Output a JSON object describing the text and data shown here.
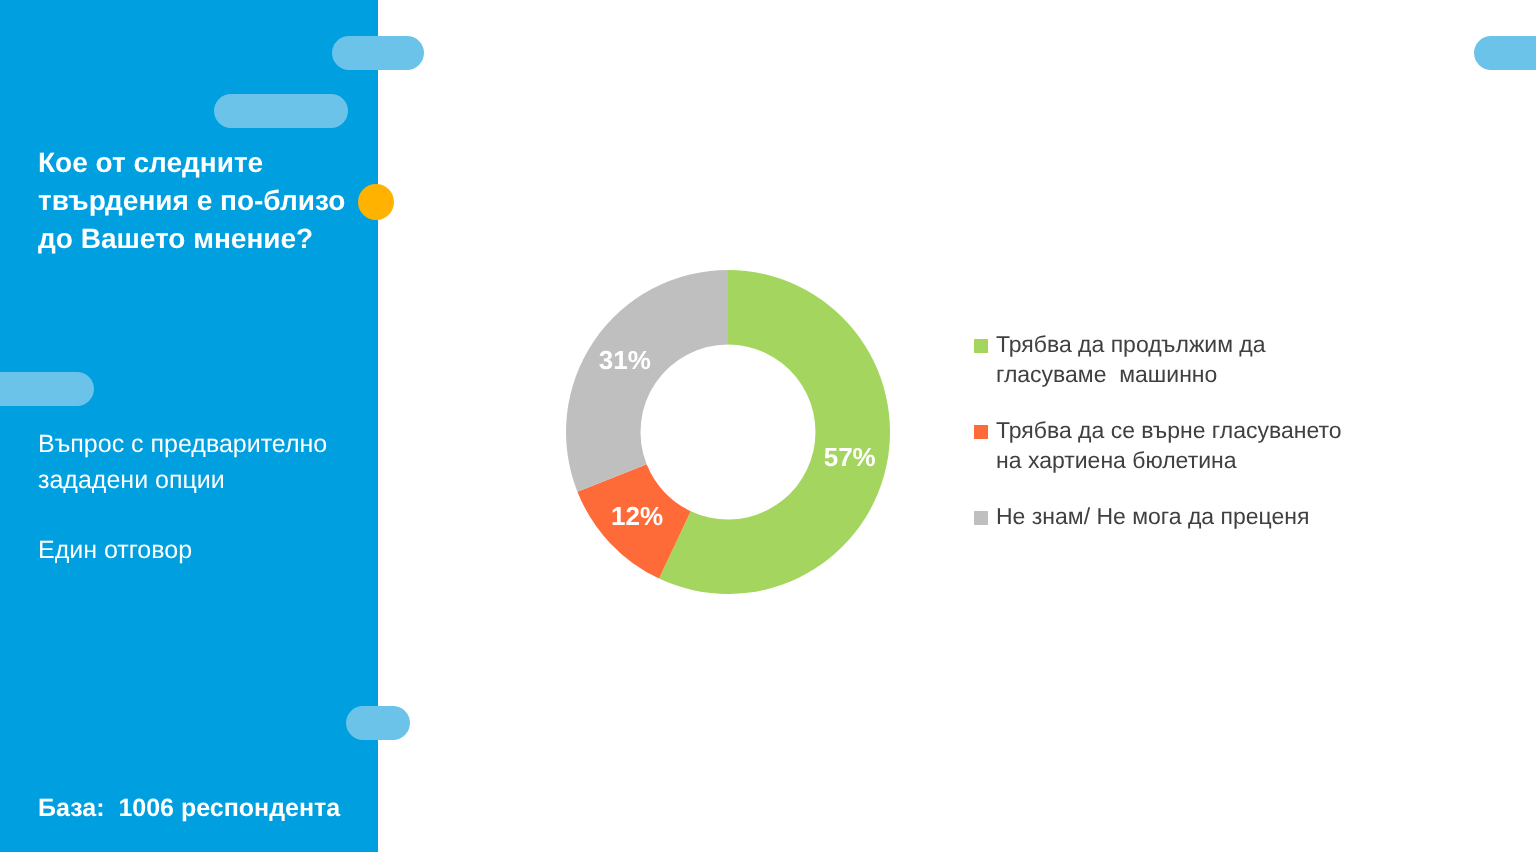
{
  "chart_data": {
    "type": "donut",
    "title": "Кое от следните твърдения е по-близо до Вашето мнение?",
    "subtitle": "Въпрос с предварително зададени опции",
    "annotations": [
      "Един отговор",
      "База:  1006 респондента"
    ],
    "categories": [
      "Трябва да продължим да гласуваме  машинно",
      "Трябва да се върне гласуването на хартиена бюлетина",
      "Не знам/ Не мога да преценя"
    ],
    "values": [
      57,
      12,
      31
    ],
    "colors": [
      "#a3d55f",
      "#ff6a39",
      "#bfbfbf"
    ],
    "value_labels": [
      "57%",
      "12%",
      "31%"
    ],
    "legend": "right"
  }
}
